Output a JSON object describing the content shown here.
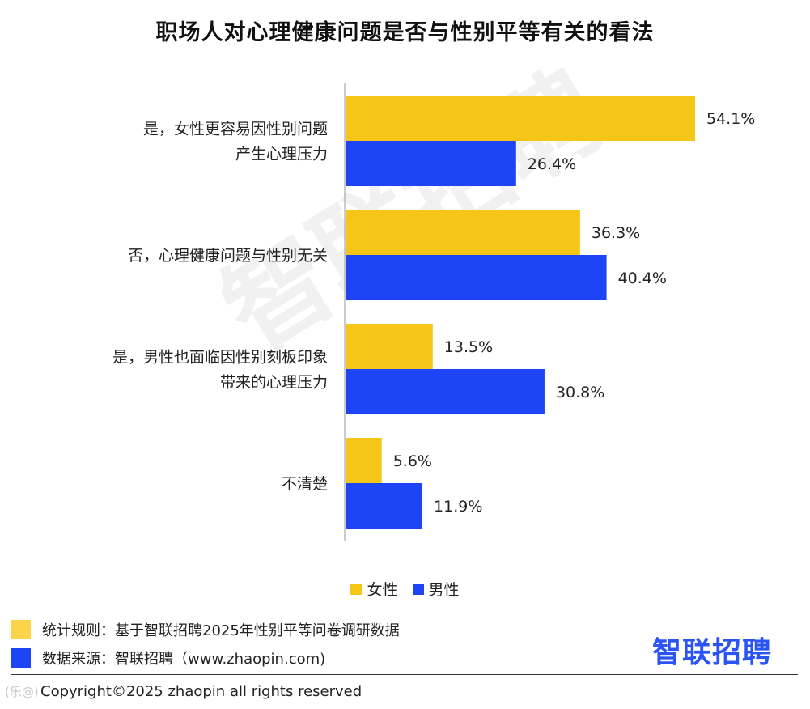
{
  "title": "职场人对心理健康问题是否与性别平等有关的看法",
  "watermark": "智联招聘",
  "colors": {
    "female": "#F5C518",
    "male": "#1E45F5",
    "note_rule": "#FBD44A",
    "note_source": "#1E45F5",
    "logo": "#2B54F5"
  },
  "chart_data": {
    "type": "bar",
    "orientation": "horizontal",
    "categories": [
      [
        "是，女性更容易因性别问题",
        "产生心理压力"
      ],
      [
        "否，心理健康问题与性别无关"
      ],
      [
        "是，男性也面临因性别刻板印象",
        "带来的心理压力"
      ],
      [
        "不清楚"
      ]
    ],
    "series": [
      {
        "name": "女性",
        "values": [
          54.1,
          36.3,
          13.5,
          5.6
        ],
        "labels": [
          "54.1%",
          "36.3%",
          "13.5%",
          "5.6%"
        ],
        "color": "#F5C518"
      },
      {
        "name": "男性",
        "values": [
          26.4,
          40.4,
          30.8,
          11.9
        ],
        "labels": [
          "26.4%",
          "40.4%",
          "30.8%",
          "11.9%"
        ],
        "color": "#1E45F5"
      }
    ],
    "xlim": [
      0,
      60
    ],
    "grid": false,
    "legend_position": "bottom"
  },
  "legend": {
    "female": "女性",
    "male": "男性"
  },
  "notes": {
    "rule": "统计规则：基于智联招聘2025年性别平等问卷调研数据",
    "source": "数据来源：智联招聘（www.zhaopin.com)"
  },
  "logo_text": "智联招聘",
  "copyright": "Copyright©2025 zhaopin all rights reserved",
  "corner_logo": "(乐@)"
}
